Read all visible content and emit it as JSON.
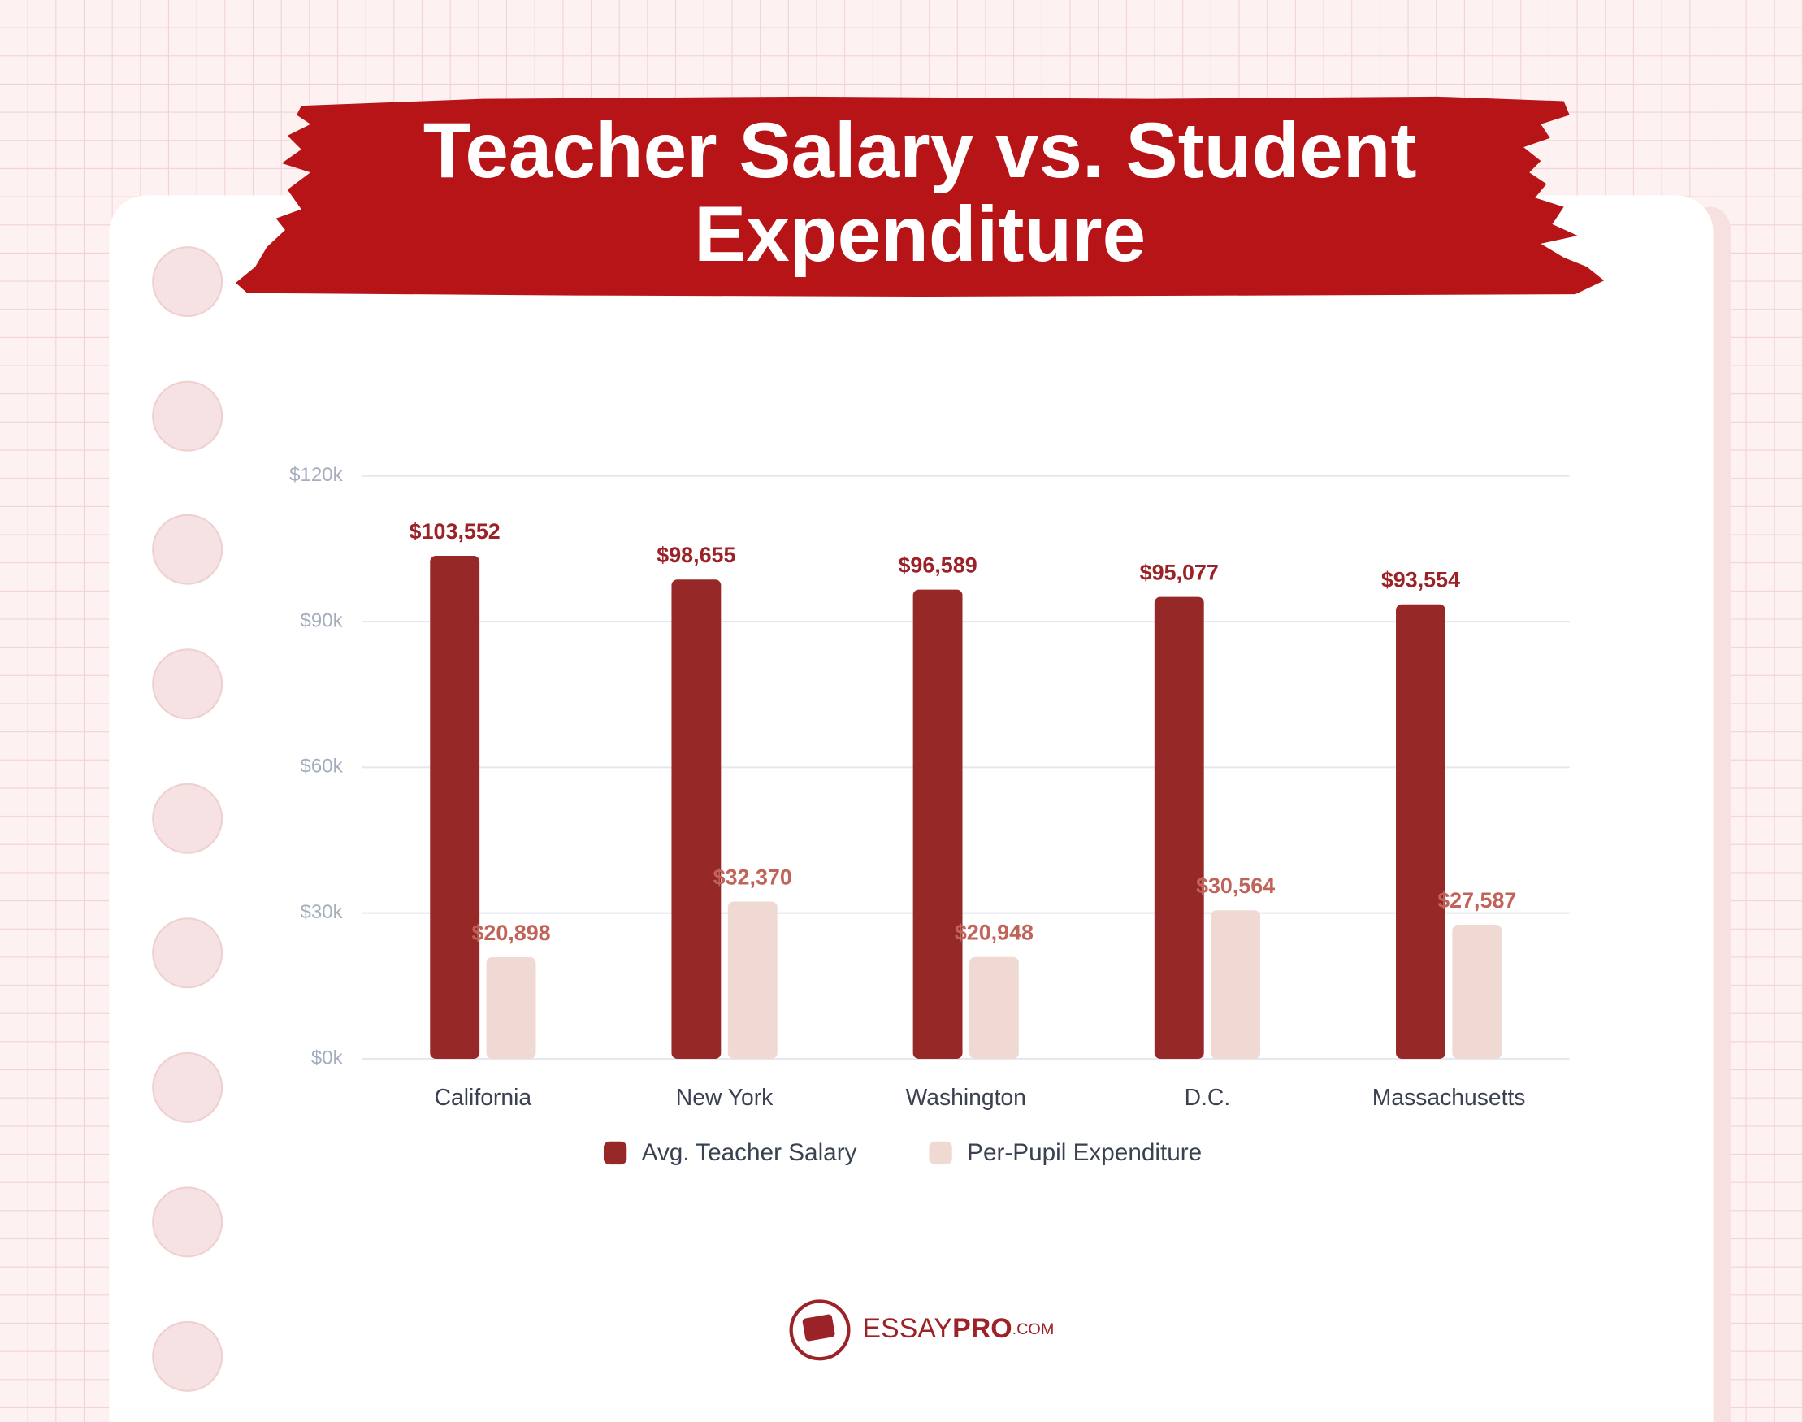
{
  "chart_data": {
    "type": "bar",
    "title_lines": [
      "Teacher Salary vs. Student",
      "Expenditure"
    ],
    "categories": [
      "California",
      "New York",
      "Washington",
      "D.C.",
      "Massachusetts"
    ],
    "series": [
      {
        "name": "Avg. Teacher Salary",
        "color": "#962828",
        "label_color": "#9b2226",
        "values": [
          103552,
          98655,
          96589,
          95077,
          93554
        ],
        "value_labels": [
          "$103,552",
          "$98,655",
          "$96,589",
          "$95,077",
          "$93,554"
        ]
      },
      {
        "name": "Per-Pupil Expenditure",
        "color": "#f0d9d3",
        "label_color": "#c0645a",
        "values": [
          20898,
          32370,
          20948,
          30564,
          27587
        ],
        "value_labels": [
          "$20,898",
          "$32,370",
          "$20,948",
          "$30,564",
          "$27,587"
        ]
      }
    ],
    "ylim": [
      0,
      120000
    ],
    "yticks": [
      {
        "value": 0,
        "label": "$0k"
      },
      {
        "value": 30000,
        "label": "$30k"
      },
      {
        "value": 60000,
        "label": "$60k"
      },
      {
        "value": 90000,
        "label": "$90k"
      },
      {
        "value": 120000,
        "label": "$120k"
      }
    ],
    "grid": true,
    "legend": "bottom"
  },
  "logo": {
    "brand": "ESSAY",
    "brand_bold": "PRO",
    "domain": ".COM"
  }
}
